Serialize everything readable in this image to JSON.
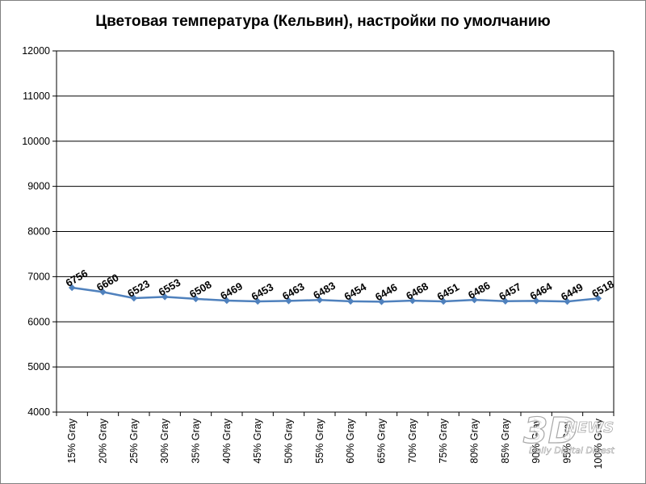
{
  "chart_data": {
    "type": "line",
    "title": "Цветовая температура (Кельвин),  настройки по умолчанию",
    "xlabel": "",
    "ylabel": "",
    "categories": [
      "15% Gray",
      "20% Gray",
      "25% Gray",
      "30% Gray",
      "35% Gray",
      "40% Gray",
      "45% Gray",
      "50% Gray",
      "55% Gray",
      "60% Gray",
      "65% Gray",
      "70% Gray",
      "75% Gray",
      "80% Gray",
      "85% Gray",
      "90% Gray",
      "95% Gray",
      "100% Gray"
    ],
    "series": [
      {
        "values": [
          6756,
          6660,
          6523,
          6553,
          6508,
          6469,
          6453,
          6463,
          6483,
          6454,
          6446,
          6468,
          6451,
          6486,
          6457,
          6464,
          6449,
          6518
        ],
        "color": "#4f81bd"
      }
    ],
    "ylim": [
      4000,
      12000
    ],
    "yticks": [
      4000,
      5000,
      6000,
      7000,
      8000,
      9000,
      10000,
      11000,
      12000
    ],
    "grid": true,
    "legend": "none",
    "data_labels": true
  },
  "watermark": {
    "logo": "3DNews",
    "tagline": "Daily Digital Digest"
  }
}
